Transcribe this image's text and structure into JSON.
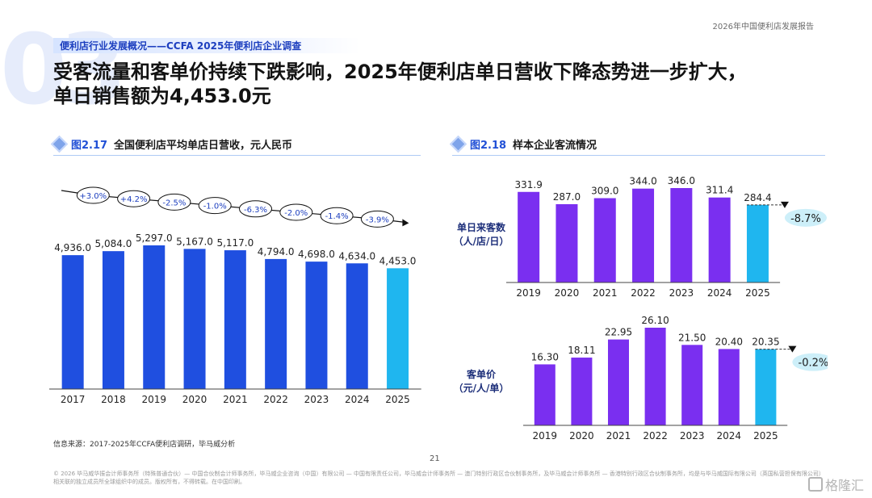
{
  "header": {
    "deco_number": "03",
    "report_name": "2026年中国便利店发展报告",
    "section_label": "便利店行业发展概况——CCFA 2025年便利店企业调查",
    "headline_line1": "受客流量和客单价持续下跌影响，2025年便利店单日营收下降态势进一步扩大，",
    "headline_line2": "单日销售额为4,453.0元"
  },
  "figures": {
    "fig1": {
      "number": "图2.17",
      "title": "全国便利店平均单店日营收，元人民币"
    },
    "fig2": {
      "number": "图2.18",
      "title": "样本企业客流情况"
    }
  },
  "colors": {
    "bar_blue": "#1f4fe0",
    "bar_highlight": "#1fb6ef",
    "bar_purple": "#7a2ff0",
    "brand_blue": "#2150d6"
  },
  "chart_data": [
    {
      "id": "daily_revenue",
      "type": "bar",
      "title": "全国便利店平均单店日营收，元人民币",
      "categories": [
        "2017",
        "2018",
        "2019",
        "2020",
        "2021",
        "2022",
        "2023",
        "2024",
        "2025"
      ],
      "values": [
        4936.0,
        5084.0,
        5297.0,
        5167.0,
        5117.0,
        4794.0,
        4698.0,
        4634.0,
        4453.0
      ],
      "labels": [
        "4,936.0",
        "5,084.0",
        "5,297.0",
        "5,167.0",
        "5,117.0",
        "4,794.0",
        "4,698.0",
        "4,634.0",
        "4,453.0"
      ],
      "growth_labels": [
        "+3.0%",
        "+4.2%",
        "-2.5%",
        "-1.0%",
        "-6.3%",
        "-2.0%",
        "-1.4%",
        "-3.9%"
      ],
      "highlight_index": 8,
      "ylim": [
        0,
        6000
      ]
    },
    {
      "id": "daily_customers",
      "type": "bar",
      "ylabel": "单日来客数\n（人/店/日）",
      "categories": [
        "2019",
        "2020",
        "2021",
        "2022",
        "2023",
        "2024",
        "2025"
      ],
      "values": [
        331.9,
        287.0,
        309.0,
        344.0,
        346.0,
        311.4,
        284.4
      ],
      "labels": [
        "331.9",
        "287.0",
        "309.0",
        "344.0",
        "346.0",
        "311.4",
        "284.4"
      ],
      "change_label": "-8.7%",
      "highlight_index": 6,
      "ylim": [
        0,
        400
      ]
    },
    {
      "id": "avg_ticket",
      "type": "bar",
      "ylabel": "客单价\n（元/人/单）",
      "categories": [
        "2019",
        "2020",
        "2021",
        "2022",
        "2023",
        "2024",
        "2025"
      ],
      "values": [
        16.3,
        18.11,
        22.95,
        26.1,
        21.5,
        20.4,
        20.35
      ],
      "labels": [
        "16.30",
        "18.11",
        "22.95",
        "26.10",
        "21.50",
        "20.40",
        "20.35"
      ],
      "change_label": "-0.2%",
      "highlight_index": 6,
      "ylim": [
        0,
        30
      ]
    }
  ],
  "source": "信息来源：2017-2025年CCFA便利店调研，毕马威分析",
  "page_number": "21",
  "footer": "© 2026 毕马威华振会计师事务所（特殊普通合伙）— 中国合伙制会计师事务所，毕马威企业咨询（中国）有限公司 — 中国有限责任公司，毕马威会计师事务所 — 澳门特别行政区合伙制事务所，及毕马威会计师事务所 — 香港特别行政区合伙制事务所，均是与毕马威国际有限公司（英国私营担保有限公司）相关联的独立成员所全球组织中的成员。版权所有，不得转载。在中国印刷。",
  "watermark": "格隆汇"
}
